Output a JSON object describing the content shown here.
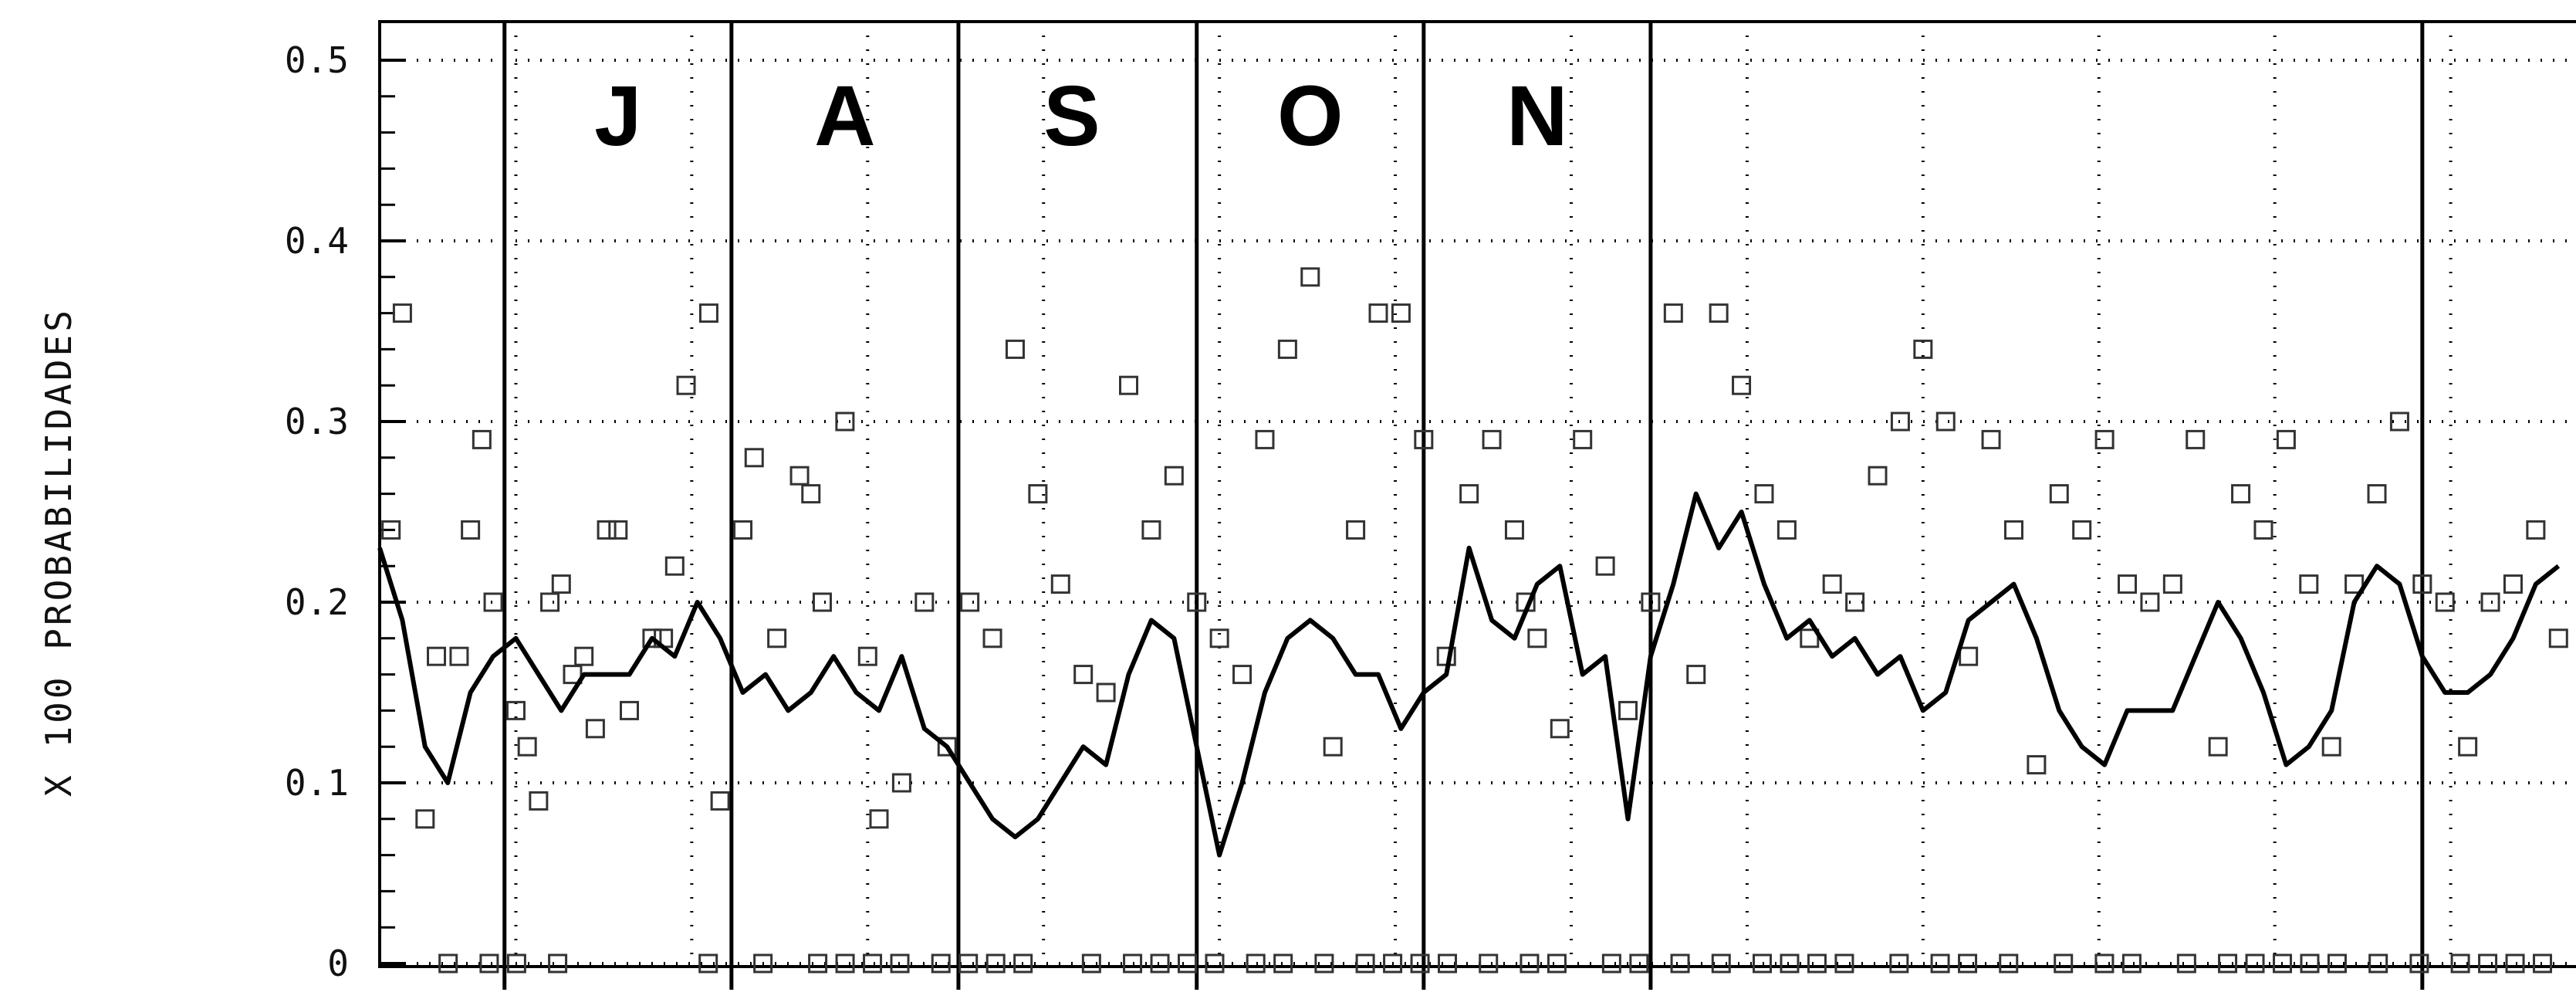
{
  "chart_data": {
    "type": "scatter",
    "title": "",
    "xlabel": "",
    "ylabel": "X 100 PROBABILIDADES",
    "ylim": [
      0,
      0.5
    ],
    "yticks": [
      "0",
      "0.1",
      "0.2",
      "0.3",
      "0.4",
      "0.5"
    ],
    "month_labels": [
      "J",
      "A",
      "S",
      "O",
      "N"
    ],
    "grid": true,
    "x_range_days": [
      0,
      193
    ],
    "smoothed_series": {
      "x": [
        0,
        2,
        4,
        6,
        8,
        10,
        12,
        14,
        16,
        18,
        20,
        22,
        24,
        26,
        28,
        30,
        32,
        34,
        36,
        38,
        40,
        42,
        44,
        46,
        48,
        50,
        52,
        54,
        56,
        58,
        60,
        62,
        64,
        66,
        68,
        70,
        72,
        74,
        76,
        78,
        80,
        82,
        84,
        86,
        88,
        90,
        92,
        94,
        96,
        98,
        100,
        102,
        104,
        106,
        108,
        110,
        112,
        114,
        116,
        118,
        120,
        122,
        124,
        126,
        128,
        130,
        132,
        134,
        136,
        138,
        140,
        142,
        144,
        146,
        148,
        150,
        152,
        154,
        156,
        158,
        160,
        162,
        164,
        166,
        168,
        170,
        172,
        174,
        176,
        178,
        180,
        182,
        184,
        186,
        188,
        190,
        192
      ],
      "y": [
        0.23,
        0.19,
        0.12,
        0.1,
        0.15,
        0.17,
        0.18,
        0.16,
        0.14,
        0.16,
        0.16,
        0.16,
        0.18,
        0.17,
        0.2,
        0.18,
        0.15,
        0.16,
        0.14,
        0.15,
        0.17,
        0.15,
        0.14,
        0.17,
        0.13,
        0.12,
        0.1,
        0.08,
        0.07,
        0.08,
        0.1,
        0.12,
        0.11,
        0.16,
        0.19,
        0.18,
        0.12,
        0.06,
        0.1,
        0.15,
        0.18,
        0.19,
        0.18,
        0.16,
        0.16,
        0.13,
        0.15,
        0.16,
        0.23,
        0.19,
        0.18,
        0.21,
        0.22,
        0.16,
        0.17,
        0.08,
        0.17,
        0.21,
        0.26,
        0.23,
        0.25,
        0.21,
        0.18,
        0.19,
        0.17,
        0.18,
        0.16,
        0.17,
        0.14,
        0.15,
        0.19,
        0.2,
        0.21,
        0.18,
        0.14,
        0.12,
        0.11,
        0.14,
        0.14,
        0.14,
        0.17,
        0.2,
        0.18,
        0.15,
        0.11,
        0.12,
        0.14,
        0.2,
        0.22,
        0.21,
        0.17,
        0.15,
        0.15,
        0.16,
        0.18,
        0.21,
        0.22
      ]
    },
    "daily_points": {
      "x": [
        1,
        2,
        4,
        5,
        7,
        8,
        9,
        10,
        12,
        13,
        14,
        15,
        16,
        17,
        18,
        19,
        20,
        21,
        22,
        24,
        25,
        26,
        27,
        29,
        30,
        32,
        33,
        35,
        37,
        38,
        39,
        41,
        43,
        44,
        46,
        48,
        50,
        52,
        54,
        56,
        58,
        60,
        62,
        64,
        66,
        68,
        70,
        72,
        74,
        76,
        78,
        80,
        82,
        84,
        86,
        88,
        90,
        92,
        94,
        96,
        98,
        100,
        101,
        102,
        104,
        106,
        108,
        110,
        112,
        114,
        116,
        118,
        120,
        122,
        124,
        126,
        128,
        130,
        132,
        134,
        136,
        138,
        140,
        142,
        144,
        146,
        148,
        150,
        152,
        154,
        156,
        158,
        160,
        162,
        164,
        166,
        168,
        170,
        172,
        174,
        176,
        178,
        180,
        182,
        184,
        186,
        188,
        190,
        192
      ],
      "y": [
        0.24,
        0.36,
        0.08,
        0.17,
        0.17,
        0.24,
        0.29,
        0.2,
        0.14,
        0.12,
        0.09,
        0.2,
        0.21,
        0.16,
        0.17,
        0.13,
        0.24,
        0.24,
        0.14,
        0.18,
        0.18,
        0.22,
        0.32,
        0.36,
        0.09,
        0.24,
        0.28,
        0.18,
        0.27,
        0.26,
        0.2,
        0.3,
        0.17,
        0.08,
        0.1,
        0.2,
        0.12,
        0.2,
        0.18,
        0.34,
        0.26,
        0.21,
        0.16,
        0.15,
        0.32,
        0.24,
        0.27,
        0.2,
        0.18,
        0.16,
        0.29,
        0.34,
        0.38,
        0.12,
        0.24,
        0.36,
        0.36,
        0.29,
        0.17,
        0.26,
        0.29,
        0.24,
        0.2,
        0.18,
        0.13,
        0.29,
        0.22,
        0.14,
        0.2,
        0.36,
        0.16,
        0.36,
        0.32,
        0.26,
        0.24,
        0.18,
        0.21,
        0.2,
        0.27,
        0.3,
        0.34,
        0.3,
        0.17,
        0.29,
        0.24,
        0.11,
        0.26,
        0.24,
        0.29,
        0.21,
        0.2,
        0.21,
        0.29,
        0.12,
        0.26,
        0.24,
        0.29,
        0.21,
        0.12,
        0.21,
        0.26,
        0.3,
        0.21,
        0.2,
        0.12,
        0.2,
        0.21,
        0.24,
        0.18
      ]
    },
    "zero_markers_x": [
      5,
      8,
      10,
      13,
      24,
      28,
      32,
      34,
      36,
      38,
      41,
      43,
      45,
      47,
      52,
      55,
      57,
      59,
      61,
      64,
      66,
      69,
      72,
      74,
      76,
      78,
      81,
      84,
      86,
      90,
      92,
      95,
      98,
      101,
      103,
      105,
      107,
      111,
      114,
      116,
      119,
      123,
      126,
      128,
      132,
      135,
      137,
      139,
      141,
      143,
      146,
      149,
      152,
      154,
      156,
      158
    ]
  }
}
